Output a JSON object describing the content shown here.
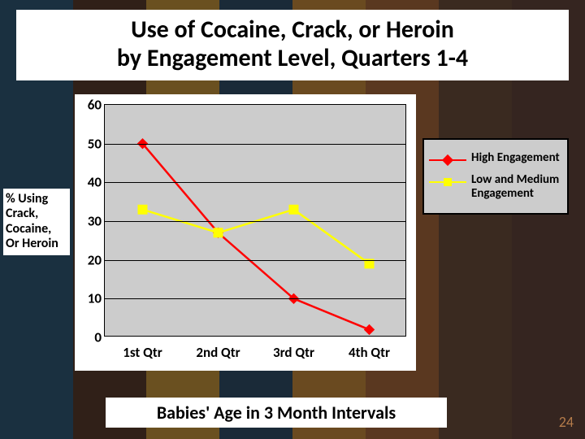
{
  "title_line1": "Use of Cocaine, Crack, or Heroin",
  "title_line2": "by Engagement Level, Quarters 1-4",
  "y_axis_label": "% Using Crack, Cocaine, Or Heroin",
  "x_axis_title": "Babies' Age in 3 Month Intervals",
  "page_number": "24",
  "background_strips": [
    "#1a3040",
    "#302018",
    "#6a5020",
    "#1a2a38",
    "#6a4a20",
    "#5a3820",
    "#3a2a20",
    "#352520"
  ],
  "chart": {
    "type": "line",
    "plot_bg": "#cccccc",
    "grid_color": "#000000",
    "ylim": [
      0,
      60
    ],
    "ytick_step": 10,
    "y_ticks": [
      0,
      10,
      20,
      30,
      40,
      50,
      60
    ],
    "x_categories": [
      "1st Qtr",
      "2nd Qtr",
      "3rd Qtr",
      "4th Qtr"
    ],
    "series": [
      {
        "key": "high",
        "label": "High Engagement",
        "color": "#ff0000",
        "marker": "diamond",
        "marker_size": 12,
        "line_width": 2.5,
        "values": [
          50,
          27,
          10,
          2
        ]
      },
      {
        "key": "lowmed",
        "label": "Low and Medium Engagement",
        "color": "#ffff00",
        "marker": "square",
        "marker_size": 11,
        "line_width": 2.5,
        "values": [
          33,
          27,
          33,
          19
        ]
      }
    ]
  },
  "legend": {
    "bg": "#cccccc",
    "border": "#000000"
  }
}
